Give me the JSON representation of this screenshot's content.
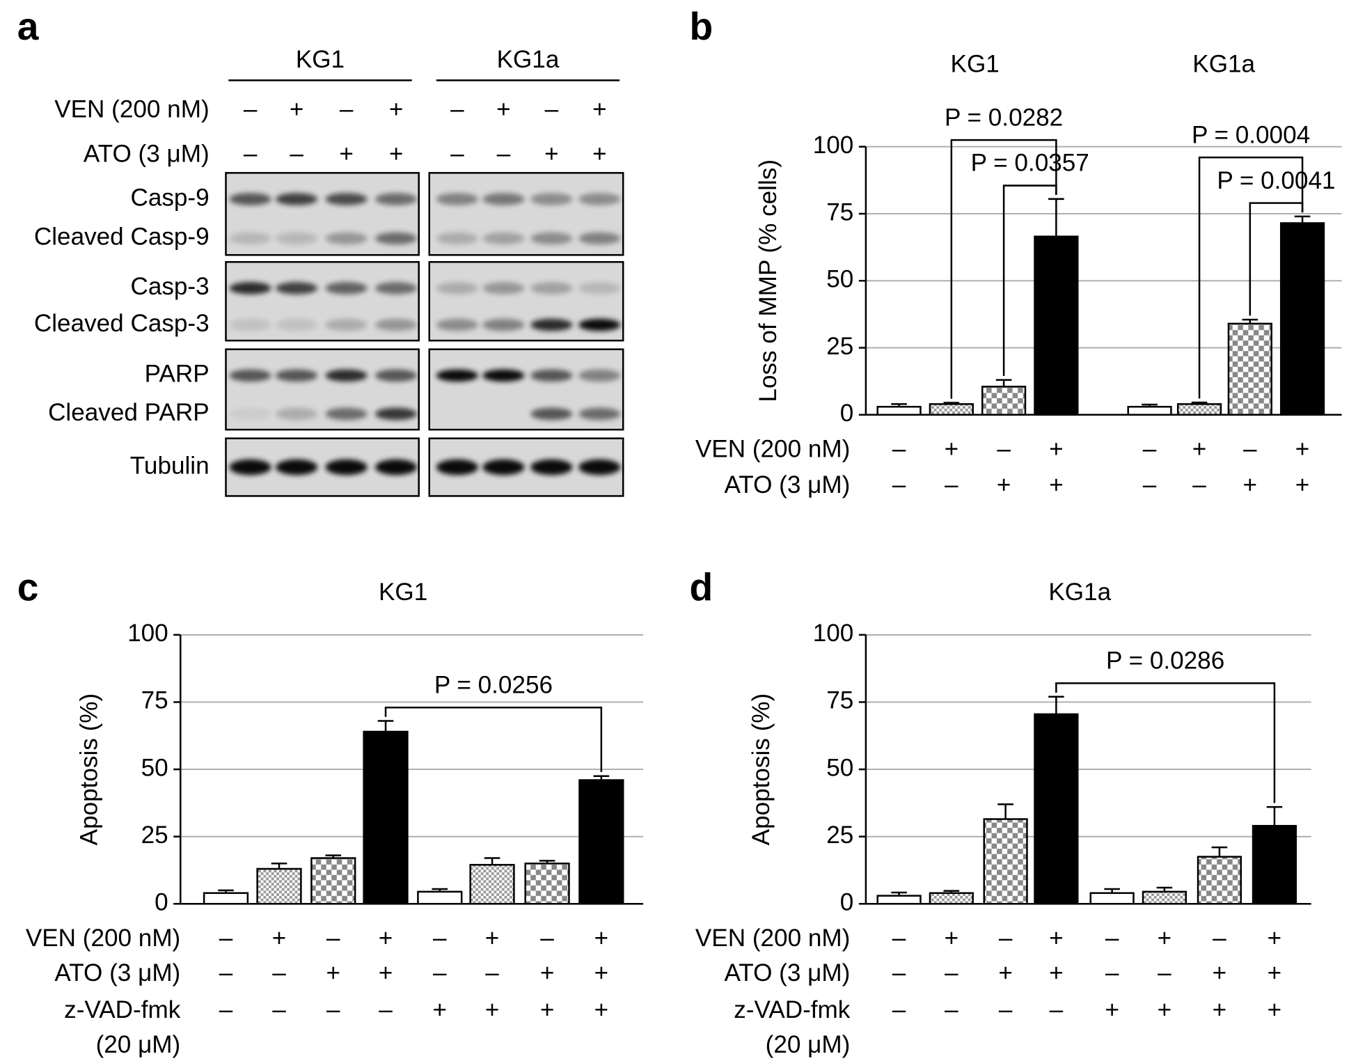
{
  "blot": {
    "panel_label": "a",
    "groups": [
      "KG1",
      "KG1a"
    ],
    "row_labels": [
      "VEN (200 nM)",
      "ATO (3 μM)"
    ],
    "conditions": [
      [
        "–",
        "+",
        "–",
        "+",
        "–",
        "+",
        "–",
        "+"
      ],
      [
        "–",
        "–",
        "+",
        "+",
        "–",
        "–",
        "+",
        "+"
      ]
    ],
    "blots": [
      [
        "Casp-9",
        "Cleaved Casp-9"
      ],
      [
        "Casp-3",
        "Cleaved Casp-3"
      ],
      [
        "PARP",
        "Cleaved PARP"
      ],
      [
        "Tubulin"
      ]
    ]
  },
  "chart_data": [
    {
      "type": "bar",
      "panel_label": "b",
      "groups": [
        "KG1",
        "KG1a"
      ],
      "ylabel": "Loss of MMP (% cells)",
      "values": [
        3,
        4,
        10.5,
        66.5,
        3,
        4,
        34,
        71.5
      ],
      "errors": [
        1,
        0.5,
        2.5,
        14,
        0.8,
        0.6,
        1.5,
        2.5
      ],
      "bar_fills": [
        "#ffffff",
        "fine-checker",
        "checker",
        "#000000",
        "#ffffff",
        "fine-checker",
        "checker",
        "#000000"
      ],
      "row_labels": [
        [
          "VEN (200 nM)"
        ],
        [
          "ATO (3 μM)"
        ]
      ],
      "conditions": [
        [
          "–",
          "+",
          "–",
          "+",
          "–",
          "+",
          "–",
          "+"
        ],
        [
          "–",
          "–",
          "+",
          "+",
          "–",
          "–",
          "+",
          "+"
        ]
      ],
      "annotations": [
        {
          "from": 1,
          "to": 3,
          "label": "P = 0.0282"
        },
        {
          "from": 2,
          "to": 3,
          "label": "P = 0.0357"
        },
        {
          "from": 5,
          "to": 7,
          "label": "P = 0.0004"
        },
        {
          "from": 6,
          "to": 7,
          "label": "P = 0.0041"
        }
      ],
      "ylim": [
        0,
        100
      ],
      "yticks": [
        0,
        25,
        50,
        75,
        100
      ],
      "grid": true
    },
    {
      "type": "bar",
      "panel_label": "c",
      "title": "KG1",
      "ylabel": "Apoptosis (%)",
      "values": [
        4,
        13,
        17,
        64,
        4.5,
        14.5,
        15,
        46
      ],
      "errors": [
        1,
        2,
        1,
        4,
        1,
        2.5,
        1,
        1.5
      ],
      "bar_fills": [
        "#ffffff",
        "fine-checker",
        "checker",
        "#000000",
        "#ffffff",
        "fine-checker",
        "checker",
        "#000000"
      ],
      "row_labels": [
        [
          "VEN (200 nM)"
        ],
        [
          "ATO (3 μM)"
        ],
        [
          "z-VAD-fmk",
          "(20 μM)"
        ]
      ],
      "conditions": [
        [
          "–",
          "+",
          "–",
          "+",
          "–",
          "+",
          "–",
          "+"
        ],
        [
          "–",
          "–",
          "+",
          "+",
          "–",
          "–",
          "+",
          "+"
        ],
        [
          "–",
          "–",
          "–",
          "–",
          "+",
          "+",
          "+",
          "+"
        ]
      ],
      "annotations": [
        {
          "from": 3,
          "to": 7,
          "label": "P = 0.0256"
        }
      ],
      "ylim": [
        0,
        100
      ],
      "yticks": [
        0,
        25,
        50,
        75,
        100
      ],
      "grid": true
    },
    {
      "type": "bar",
      "panel_label": "d",
      "title": "KG1a",
      "ylabel": "Apoptosis (%)",
      "values": [
        3,
        4,
        31.5,
        70.5,
        4,
        4.5,
        17.5,
        29
      ],
      "errors": [
        1.2,
        0.8,
        5.5,
        6.5,
        1.5,
        1.5,
        3.5,
        7
      ],
      "bar_fills": [
        "#ffffff",
        "fine-checker",
        "checker",
        "#000000",
        "#ffffff",
        "fine-checker",
        "checker",
        "#000000"
      ],
      "row_labels": [
        [
          "VEN (200 nM)"
        ],
        [
          "ATO (3 μM)"
        ],
        [
          "z-VAD-fmk",
          "(20 μM)"
        ]
      ],
      "conditions": [
        [
          "–",
          "+",
          "–",
          "+",
          "–",
          "+",
          "–",
          "+"
        ],
        [
          "–",
          "–",
          "+",
          "+",
          "–",
          "–",
          "+",
          "+"
        ],
        [
          "–",
          "–",
          "–",
          "–",
          "+",
          "+",
          "+",
          "+"
        ]
      ],
      "annotations": [
        {
          "from": 3,
          "to": 7,
          "label": "P = 0.0286"
        }
      ],
      "ylim": [
        0,
        100
      ],
      "yticks": [
        0,
        25,
        50,
        75,
        100
      ],
      "grid": true
    }
  ]
}
